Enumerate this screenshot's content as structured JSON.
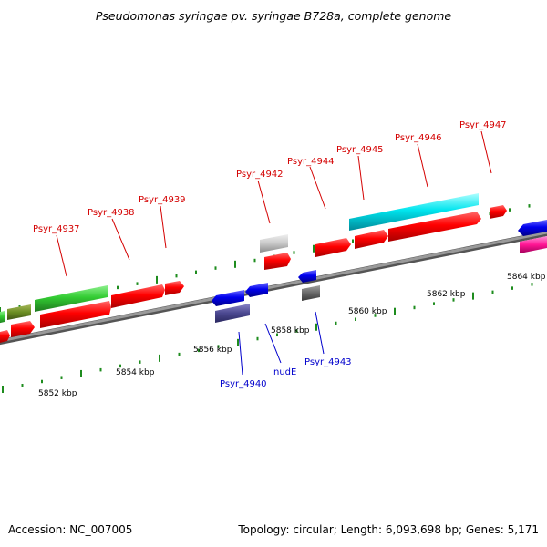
{
  "title": "Pseudomonas syringae pv. syringae B728a, complete genome",
  "footer": {
    "accession": "Accession: NC_007005",
    "summary": "Topology: circular; Length: 6,093,698 bp; Genes: 5,171"
  },
  "colors": {
    "forward_label": "#d40000",
    "reverse_label": "#0000cc",
    "backbone": "#888888",
    "tick": "#1e8c1e"
  },
  "kbp_labels": [
    "5852 kbp",
    "5854 kbp",
    "5856 kbp",
    "5858 kbp",
    "5860 kbp",
    "5862 kbp",
    "5864 kbp"
  ],
  "gene_labels": [
    {
      "name": "Psyr_4937",
      "strand": "forward"
    },
    {
      "name": "Psyr_4938",
      "strand": "forward"
    },
    {
      "name": "Psyr_4939",
      "strand": "forward"
    },
    {
      "name": "Psyr_4942",
      "strand": "forward"
    },
    {
      "name": "Psyr_4944",
      "strand": "forward"
    },
    {
      "name": "Psyr_4945",
      "strand": "forward"
    },
    {
      "name": "Psyr_4946",
      "strand": "forward"
    },
    {
      "name": "Psyr_4947",
      "strand": "forward"
    },
    {
      "name": "Psyr_4940",
      "strand": "reverse"
    },
    {
      "name": "nudE",
      "strand": "reverse"
    },
    {
      "name": "Psyr_4943",
      "strand": "reverse"
    }
  ]
}
